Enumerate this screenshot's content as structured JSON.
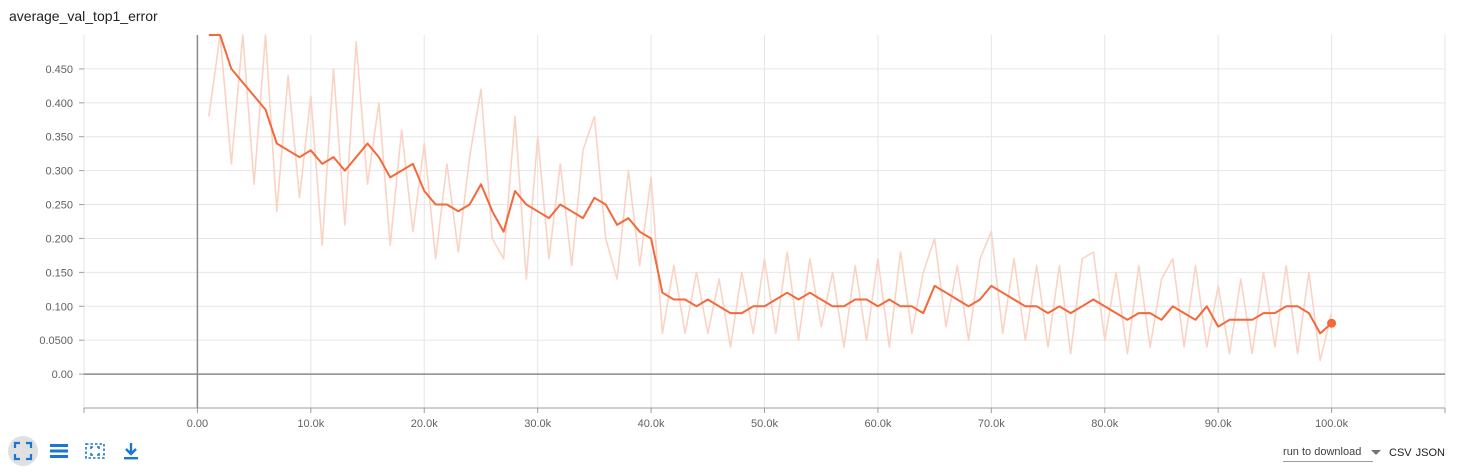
{
  "chart_data": {
    "type": "line",
    "title": "average_val_top1_error",
    "xlim": [
      -10000,
      110000
    ],
    "ylim": [
      -0.05,
      0.5
    ],
    "x_ticks": [
      -10000,
      0,
      10000,
      20000,
      30000,
      40000,
      50000,
      60000,
      70000,
      80000,
      90000,
      100000,
      110000
    ],
    "x_tick_labels": [
      "",
      "0.00",
      "10.0k",
      "20.0k",
      "30.0k",
      "40.0k",
      "50.0k",
      "60.0k",
      "70.0k",
      "80.0k",
      "90.0k",
      "100.0k",
      ""
    ],
    "y_ticks": [
      0,
      0.05,
      0.1,
      0.15,
      0.2,
      0.25,
      0.3,
      0.35,
      0.4,
      0.45
    ],
    "y_tick_labels": [
      "0.00",
      "0.0500",
      "0.100",
      "0.150",
      "0.200",
      "0.250",
      "0.300",
      "0.350",
      "0.400",
      "0.450"
    ],
    "grid": true,
    "series": [
      {
        "color": "#f4683a",
        "raw_color": "#fbd3c4",
        "x": [
          1000,
          2000,
          3000,
          4000,
          5000,
          6000,
          7000,
          8000,
          9000,
          10000,
          11000,
          12000,
          13000,
          14000,
          15000,
          16000,
          17000,
          18000,
          19000,
          20000,
          21000,
          22000,
          23000,
          24000,
          25000,
          26000,
          27000,
          28000,
          29000,
          30000,
          31000,
          32000,
          33000,
          34000,
          35000,
          36000,
          37000,
          38000,
          39000,
          40000,
          41000,
          42000,
          43000,
          44000,
          45000,
          46000,
          47000,
          48000,
          49000,
          50000,
          51000,
          52000,
          53000,
          54000,
          55000,
          56000,
          57000,
          58000,
          59000,
          60000,
          61000,
          62000,
          63000,
          64000,
          65000,
          66000,
          67000,
          68000,
          69000,
          70000,
          71000,
          72000,
          73000,
          74000,
          75000,
          76000,
          77000,
          78000,
          79000,
          80000,
          81000,
          82000,
          83000,
          84000,
          85000,
          86000,
          87000,
          88000,
          89000,
          90000,
          91000,
          92000,
          93000,
          94000,
          95000,
          96000,
          97000,
          98000,
          99000,
          100000
        ],
        "smoothed": [
          0.52,
          0.5,
          0.45,
          0.43,
          0.41,
          0.39,
          0.34,
          0.33,
          0.32,
          0.33,
          0.31,
          0.32,
          0.3,
          0.32,
          0.34,
          0.32,
          0.29,
          0.3,
          0.31,
          0.27,
          0.25,
          0.25,
          0.24,
          0.25,
          0.28,
          0.24,
          0.21,
          0.27,
          0.25,
          0.24,
          0.23,
          0.25,
          0.24,
          0.23,
          0.26,
          0.25,
          0.22,
          0.23,
          0.21,
          0.2,
          0.12,
          0.11,
          0.11,
          0.1,
          0.11,
          0.1,
          0.09,
          0.09,
          0.1,
          0.1,
          0.11,
          0.12,
          0.11,
          0.12,
          0.11,
          0.1,
          0.1,
          0.11,
          0.11,
          0.1,
          0.11,
          0.1,
          0.1,
          0.09,
          0.13,
          0.12,
          0.11,
          0.1,
          0.11,
          0.13,
          0.12,
          0.11,
          0.1,
          0.1,
          0.09,
          0.1,
          0.09,
          0.1,
          0.11,
          0.1,
          0.09,
          0.08,
          0.09,
          0.09,
          0.08,
          0.1,
          0.09,
          0.08,
          0.1,
          0.07,
          0.08,
          0.08,
          0.08,
          0.09,
          0.09,
          0.1,
          0.1,
          0.09,
          0.06,
          0.075
        ],
        "raw": [
          0.38,
          0.6,
          0.31,
          0.55,
          0.28,
          0.51,
          0.24,
          0.44,
          0.26,
          0.41,
          0.19,
          0.45,
          0.22,
          0.49,
          0.28,
          0.4,
          0.19,
          0.36,
          0.21,
          0.34,
          0.17,
          0.31,
          0.18,
          0.32,
          0.42,
          0.2,
          0.17,
          0.38,
          0.14,
          0.35,
          0.17,
          0.31,
          0.16,
          0.33,
          0.38,
          0.2,
          0.14,
          0.3,
          0.16,
          0.29,
          0.06,
          0.16,
          0.06,
          0.15,
          0.06,
          0.14,
          0.04,
          0.15,
          0.06,
          0.17,
          0.06,
          0.18,
          0.05,
          0.17,
          0.07,
          0.15,
          0.04,
          0.16,
          0.05,
          0.17,
          0.04,
          0.18,
          0.06,
          0.15,
          0.2,
          0.07,
          0.16,
          0.05,
          0.17,
          0.21,
          0.06,
          0.17,
          0.05,
          0.16,
          0.04,
          0.16,
          0.03,
          0.17,
          0.18,
          0.05,
          0.15,
          0.03,
          0.16,
          0.04,
          0.14,
          0.17,
          0.04,
          0.16,
          0.04,
          0.13,
          0.03,
          0.14,
          0.03,
          0.15,
          0.04,
          0.16,
          0.03,
          0.15,
          0.02,
          0.09
        ],
        "last_point": {
          "x": 100000,
          "y": 0.075
        }
      }
    ]
  },
  "toolbar": {
    "buttons": [
      {
        "name": "fit-domain-icon"
      },
      {
        "name": "toggle-log-scale-icon"
      },
      {
        "name": "selection-zoom-icon"
      },
      {
        "name": "download-icon"
      }
    ]
  },
  "download": {
    "run_select_placeholder": "run to download",
    "csv_label": "CSV",
    "json_label": "JSON"
  }
}
